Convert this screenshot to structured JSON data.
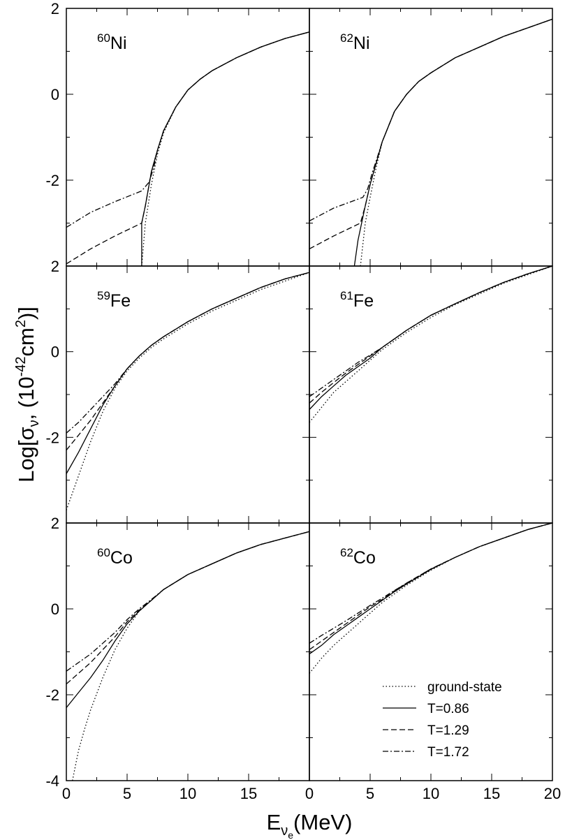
{
  "figure": {
    "ylabel": {
      "base": "Log[σ",
      "sub": "ν",
      "mid": ", (10",
      "sup": "-42",
      "end": "cm",
      "sup2": "2",
      "close": ")]"
    },
    "xlabel": {
      "base": "E",
      "sub": "ν",
      "subsub": "e",
      "end": "(MeV)"
    }
  },
  "legend": {
    "items": [
      {
        "label": "ground-state",
        "style": "dotted"
      },
      {
        "label": "T=0.86",
        "style": "solid"
      },
      {
        "label": "T=1.29",
        "style": "dashed"
      },
      {
        "label": "T=1.72",
        "style": "dashdot"
      }
    ]
  },
  "chart_data": [
    {
      "type": "line",
      "panel": "top-left",
      "label": {
        "mass": "60",
        "element": "Ni"
      },
      "xlim": [
        0,
        20
      ],
      "ylim": [
        -4,
        2
      ],
      "yticks": [
        {
          "v": 2,
          "label": "2"
        },
        {
          "v": 0,
          "label": "0"
        },
        {
          "v": -2,
          "label": "-2"
        }
      ],
      "xticks": [],
      "series": [
        {
          "style": "dotted",
          "x": [
            6.2,
            6.5,
            7,
            7.5,
            8,
            9,
            10,
            11,
            12,
            14,
            16,
            18,
            20
          ],
          "y": [
            -4,
            -3.0,
            -2.1,
            -1.4,
            -0.9,
            -0.3,
            0.1,
            0.35,
            0.55,
            0.85,
            1.1,
            1.3,
            1.45
          ]
        },
        {
          "style": "solid",
          "x": [
            6.2,
            6.2,
            6.5,
            7,
            7.5,
            8,
            9,
            10,
            11,
            12,
            14,
            16,
            18,
            20
          ],
          "y": [
            -4,
            -3.0,
            -2.6,
            -1.8,
            -1.3,
            -0.85,
            -0.3,
            0.1,
            0.35,
            0.55,
            0.85,
            1.1,
            1.3,
            1.45
          ]
        },
        {
          "style": "dashed",
          "x": [
            0,
            2,
            4,
            6.2,
            6.5,
            7,
            7.5,
            8,
            9,
            10,
            11,
            12,
            14,
            16,
            18,
            20
          ],
          "y": [
            -3.95,
            -3.6,
            -3.3,
            -3.0,
            -2.6,
            -1.8,
            -1.3,
            -0.85,
            -0.3,
            0.1,
            0.35,
            0.55,
            0.85,
            1.1,
            1.3,
            1.45
          ]
        },
        {
          "style": "dashdot",
          "x": [
            0,
            2,
            4,
            6.2,
            6.8,
            7.2,
            7.5,
            8,
            9,
            10,
            11,
            12,
            14,
            16,
            18,
            20
          ],
          "y": [
            -3.1,
            -2.75,
            -2.5,
            -2.25,
            -2.05,
            -1.7,
            -1.3,
            -0.85,
            -0.3,
            0.1,
            0.35,
            0.55,
            0.85,
            1.1,
            1.3,
            1.45
          ]
        }
      ]
    },
    {
      "type": "line",
      "panel": "top-right",
      "label": {
        "mass": "62",
        "element": "Ni"
      },
      "xlim": [
        0,
        20
      ],
      "ylim": [
        -4,
        2
      ],
      "yticks": [],
      "xticks": [],
      "series": [
        {
          "style": "dotted",
          "x": [
            4.2,
            4.6,
            5,
            5.5,
            6,
            7,
            8,
            9,
            10,
            12,
            14,
            16,
            18,
            20
          ],
          "y": [
            -4,
            -3.0,
            -2.4,
            -1.7,
            -1.1,
            -0.4,
            0.0,
            0.3,
            0.5,
            0.85,
            1.1,
            1.35,
            1.55,
            1.75
          ]
        },
        {
          "style": "solid",
          "x": [
            3.7,
            4.0,
            4.3,
            4.6,
            5,
            5.5,
            6,
            7,
            8,
            9,
            10,
            12,
            14,
            16,
            18,
            20
          ],
          "y": [
            -4,
            -3.4,
            -3.0,
            -2.6,
            -2.1,
            -1.6,
            -1.1,
            -0.4,
            0.0,
            0.3,
            0.5,
            0.85,
            1.1,
            1.35,
            1.55,
            1.75
          ]
        },
        {
          "style": "dashed",
          "x": [
            0,
            2,
            4.2,
            4.6,
            5,
            5.5,
            6,
            7,
            8,
            9,
            10,
            12,
            14,
            16,
            18,
            20
          ],
          "y": [
            -3.6,
            -3.3,
            -3.0,
            -2.6,
            -2.1,
            -1.6,
            -1.1,
            -0.4,
            0.0,
            0.3,
            0.5,
            0.85,
            1.1,
            1.35,
            1.55,
            1.75
          ]
        },
        {
          "style": "dashdot",
          "x": [
            0,
            2,
            4.4,
            4.8,
            5.2,
            5.5,
            6,
            7,
            8,
            9,
            10,
            12,
            14,
            16,
            18,
            20
          ],
          "y": [
            -2.95,
            -2.65,
            -2.4,
            -2.2,
            -1.8,
            -1.55,
            -1.1,
            -0.4,
            0.0,
            0.3,
            0.5,
            0.85,
            1.1,
            1.35,
            1.55,
            1.75
          ]
        }
      ]
    },
    {
      "type": "line",
      "panel": "middle-left",
      "label": {
        "mass": "59",
        "element": "Fe"
      },
      "xlim": [
        0,
        20
      ],
      "ylim": [
        -4,
        2
      ],
      "yticks": [
        {
          "v": 2,
          "label": "2"
        },
        {
          "v": 0,
          "label": "0"
        },
        {
          "v": -2,
          "label": "-2"
        }
      ],
      "xticks": [],
      "series": [
        {
          "style": "dotted",
          "x": [
            0,
            1,
            2,
            3,
            4,
            5,
            6,
            7,
            8,
            10,
            12,
            14,
            16,
            18,
            20
          ],
          "y": [
            -3.7,
            -2.9,
            -2.1,
            -1.4,
            -0.85,
            -0.45,
            -0.15,
            0.1,
            0.3,
            0.65,
            0.95,
            1.2,
            1.45,
            1.65,
            1.85
          ]
        },
        {
          "style": "solid",
          "x": [
            0,
            1,
            2,
            3,
            4,
            5,
            6,
            7,
            8,
            10,
            12,
            14,
            16,
            18,
            20
          ],
          "y": [
            -2.85,
            -2.35,
            -1.8,
            -1.25,
            -0.8,
            -0.4,
            -0.1,
            0.15,
            0.35,
            0.7,
            1.0,
            1.25,
            1.5,
            1.7,
            1.85
          ]
        },
        {
          "style": "dashed",
          "x": [
            0,
            1,
            2,
            3,
            4,
            5,
            6,
            7,
            8,
            10,
            12,
            14,
            16,
            18,
            20
          ],
          "y": [
            -2.3,
            -1.95,
            -1.6,
            -1.2,
            -0.8,
            -0.4,
            -0.1,
            0.15,
            0.35,
            0.7,
            1.0,
            1.25,
            1.5,
            1.7,
            1.85
          ]
        },
        {
          "style": "dashdot",
          "x": [
            0,
            1,
            2,
            3,
            4,
            5,
            6,
            7,
            8,
            10,
            12,
            14,
            16,
            18,
            20
          ],
          "y": [
            -1.9,
            -1.65,
            -1.35,
            -1.05,
            -0.75,
            -0.4,
            -0.1,
            0.15,
            0.35,
            0.7,
            1.0,
            1.25,
            1.5,
            1.7,
            1.85
          ]
        }
      ]
    },
    {
      "type": "line",
      "panel": "middle-right",
      "label": {
        "mass": "61",
        "element": "Fe"
      },
      "xlim": [
        0,
        20
      ],
      "ylim": [
        -4,
        2
      ],
      "yticks": [],
      "xticks": [],
      "series": [
        {
          "style": "dotted",
          "x": [
            0,
            1,
            2,
            3,
            4,
            5,
            6,
            7,
            8,
            10,
            12,
            14,
            16,
            18,
            20
          ],
          "y": [
            -1.65,
            -1.3,
            -0.95,
            -0.7,
            -0.45,
            -0.2,
            0.05,
            0.25,
            0.45,
            0.8,
            1.1,
            1.35,
            1.6,
            1.8,
            2.0
          ]
        },
        {
          "style": "solid",
          "x": [
            0,
            1,
            2,
            3,
            4,
            5,
            6,
            7,
            8,
            10,
            12,
            14,
            16,
            18,
            20
          ],
          "y": [
            -1.35,
            -1.05,
            -0.8,
            -0.55,
            -0.35,
            -0.15,
            0.1,
            0.3,
            0.5,
            0.85,
            1.12,
            1.38,
            1.62,
            1.82,
            2.0
          ]
        },
        {
          "style": "dashed",
          "x": [
            0,
            1,
            2,
            3,
            4,
            5,
            6,
            7,
            8,
            10,
            12,
            14,
            16,
            18,
            20
          ],
          "y": [
            -1.2,
            -0.95,
            -0.72,
            -0.5,
            -0.3,
            -0.1,
            0.1,
            0.3,
            0.5,
            0.85,
            1.12,
            1.38,
            1.62,
            1.82,
            2.0
          ]
        },
        {
          "style": "dashdot",
          "x": [
            0,
            1,
            2,
            3,
            4,
            5,
            6,
            7,
            8,
            10,
            12,
            14,
            16,
            18,
            20
          ],
          "y": [
            -1.05,
            -0.85,
            -0.65,
            -0.45,
            -0.25,
            -0.08,
            0.1,
            0.3,
            0.5,
            0.85,
            1.12,
            1.38,
            1.62,
            1.82,
            2.0
          ]
        }
      ]
    },
    {
      "type": "line",
      "panel": "bottom-left",
      "label": {
        "mass": "60",
        "element": "Co"
      },
      "xlim": [
        0,
        20
      ],
      "ylim": [
        -4,
        2
      ],
      "yticks": [
        {
          "v": 2,
          "label": "2"
        },
        {
          "v": 0,
          "label": "0"
        },
        {
          "v": -2,
          "label": "-2"
        },
        {
          "v": -4,
          "label": "-4"
        }
      ],
      "xticks": [
        {
          "v": 0,
          "label": "0"
        },
        {
          "v": 5,
          "label": "5"
        },
        {
          "v": 10,
          "label": "10"
        },
        {
          "v": 15,
          "label": "15"
        }
      ],
      "series": [
        {
          "style": "dotted",
          "x": [
            0.5,
            1,
            1.5,
            2,
            3,
            4,
            5,
            6,
            7,
            8,
            10,
            12,
            14,
            16,
            18,
            20
          ],
          "y": [
            -4.0,
            -3.3,
            -2.8,
            -2.35,
            -1.6,
            -0.95,
            -0.45,
            -0.05,
            0.2,
            0.45,
            0.8,
            1.05,
            1.3,
            1.5,
            1.65,
            1.8
          ]
        },
        {
          "style": "solid",
          "x": [
            0,
            1,
            2,
            3,
            4,
            5,
            6,
            7,
            8,
            10,
            12,
            14,
            16,
            18,
            20
          ],
          "y": [
            -2.3,
            -1.95,
            -1.6,
            -1.2,
            -0.75,
            -0.35,
            -0.05,
            0.2,
            0.45,
            0.8,
            1.05,
            1.3,
            1.5,
            1.65,
            1.8
          ]
        },
        {
          "style": "dashed",
          "x": [
            0,
            1,
            2,
            3,
            4,
            5,
            6,
            7,
            8,
            10,
            12,
            14,
            16,
            18,
            20
          ],
          "y": [
            -1.75,
            -1.5,
            -1.25,
            -0.95,
            -0.65,
            -0.3,
            -0.03,
            0.2,
            0.45,
            0.8,
            1.05,
            1.3,
            1.5,
            1.65,
            1.8
          ]
        },
        {
          "style": "dashdot",
          "x": [
            0,
            1,
            2,
            3,
            4,
            5,
            6,
            7,
            8,
            10,
            12,
            14,
            16,
            18,
            20
          ],
          "y": [
            -1.45,
            -1.25,
            -1.05,
            -0.8,
            -0.55,
            -0.25,
            0.0,
            0.22,
            0.45,
            0.8,
            1.05,
            1.3,
            1.5,
            1.65,
            1.8
          ]
        }
      ]
    },
    {
      "type": "line",
      "panel": "bottom-right",
      "label": {
        "mass": "62",
        "element": "Co"
      },
      "xlim": [
        0,
        20
      ],
      "ylim": [
        -4,
        2
      ],
      "yticks": [],
      "xticks": [
        {
          "v": 0,
          "label": "0"
        },
        {
          "v": 5,
          "label": "5"
        },
        {
          "v": 10,
          "label": "10"
        },
        {
          "v": 15,
          "label": "15"
        },
        {
          "v": 20,
          "label": "20"
        }
      ],
      "series": [
        {
          "style": "dotted",
          "x": [
            0,
            1,
            2,
            3,
            4,
            5,
            6,
            7,
            8,
            10,
            12,
            14,
            16,
            18,
            20
          ],
          "y": [
            -1.5,
            -1.15,
            -0.85,
            -0.6,
            -0.35,
            -0.1,
            0.15,
            0.35,
            0.55,
            0.9,
            1.2,
            1.45,
            1.65,
            1.85,
            2.0
          ]
        },
        {
          "style": "solid",
          "x": [
            0,
            1,
            2,
            3,
            4,
            5,
            6,
            7,
            8,
            10,
            12,
            14,
            16,
            18,
            20
          ],
          "y": [
            -1.05,
            -0.85,
            -0.6,
            -0.4,
            -0.2,
            0.0,
            0.2,
            0.4,
            0.58,
            0.92,
            1.2,
            1.45,
            1.65,
            1.85,
            2.0
          ]
        },
        {
          "style": "dashed",
          "x": [
            0,
            1,
            2,
            3,
            4,
            5,
            6,
            7,
            8,
            10,
            12,
            14,
            16,
            18,
            20
          ],
          "y": [
            -0.95,
            -0.75,
            -0.55,
            -0.35,
            -0.15,
            0.05,
            0.22,
            0.42,
            0.6,
            0.93,
            1.2,
            1.45,
            1.65,
            1.85,
            2.0
          ]
        },
        {
          "style": "dashdot",
          "x": [
            0,
            1,
            2,
            3,
            4,
            5,
            6,
            7,
            8,
            10,
            12,
            14,
            16,
            18,
            20
          ],
          "y": [
            -0.8,
            -0.62,
            -0.45,
            -0.28,
            -0.1,
            0.08,
            0.25,
            0.43,
            0.6,
            0.93,
            1.2,
            1.45,
            1.65,
            1.85,
            2.0
          ]
        }
      ]
    }
  ]
}
